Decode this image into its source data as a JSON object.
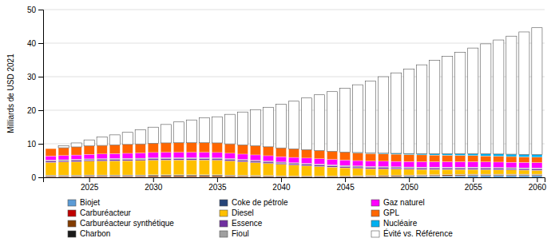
{
  "chart_data": {
    "type": "bar",
    "stacked": true,
    "ylabel": "Milliards de USD 2021",
    "x": [
      2022,
      2023,
      2024,
      2025,
      2026,
      2027,
      2028,
      2029,
      2030,
      2031,
      2032,
      2033,
      2034,
      2035,
      2036,
      2037,
      2038,
      2039,
      2040,
      2041,
      2042,
      2043,
      2044,
      2045,
      2046,
      2047,
      2048,
      2049,
      2050,
      2051,
      2052,
      2053,
      2054,
      2055,
      2056,
      2057,
      2058,
      2059,
      2060
    ],
    "xlim": [
      2021.4,
      2060.6
    ],
    "xticks": [
      2025,
      2030,
      2035,
      2040,
      2045,
      2050,
      2055,
      2060
    ],
    "ylim": [
      0,
      50
    ],
    "yticks": [
      0,
      10,
      20,
      30,
      40,
      50
    ],
    "grid": true,
    "legend": "bottom",
    "series": [
      {
        "name": "Biojet",
        "color": "#5B9BD5",
        "values": [
          0.0,
          0.0,
          0.0,
          0.0,
          0.0,
          0.0,
          0.0,
          0.0,
          0.0,
          0.0,
          0.0,
          0.0,
          0.0,
          0.0,
          0.0,
          0.0,
          0.0,
          0.0,
          0.0,
          0.0,
          0.0,
          0.0,
          0.0,
          0.0,
          0.05,
          0.1,
          0.15,
          0.2,
          0.25,
          0.3,
          0.35,
          0.4,
          0.45,
          0.5,
          0.5,
          0.5,
          0.5,
          0.5,
          0.5
        ]
      },
      {
        "name": "Carburéacteur",
        "color": "#C00000",
        "values": [
          0.15,
          0.15,
          0.15,
          0.15,
          0.15,
          0.15,
          0.15,
          0.15,
          0.15,
          0.15,
          0.15,
          0.15,
          0.15,
          0.15,
          0.12,
          0.1,
          0.08,
          0.06,
          0.05,
          0.04,
          0.04,
          0.04,
          0.04,
          0.04,
          0.04,
          0.04,
          0.04,
          0.04,
          0.04,
          0.04,
          0.04,
          0.04,
          0.04,
          0.04,
          0.04,
          0.04,
          0.04,
          0.04,
          0.04
        ]
      },
      {
        "name": "Carburéacteur synthétique",
        "color": "#833C00",
        "values": [
          0.25,
          0.25,
          0.25,
          0.3,
          0.3,
          0.3,
          0.3,
          0.3,
          0.35,
          0.35,
          0.35,
          0.35,
          0.35,
          0.35,
          0.35,
          0.35,
          0.35,
          0.35,
          0.3,
          0.3,
          0.3,
          0.3,
          0.3,
          0.3,
          0.3,
          0.3,
          0.3,
          0.3,
          0.3,
          0.3,
          0.3,
          0.3,
          0.3,
          0.3,
          0.3,
          0.3,
          0.3,
          0.3,
          0.3
        ]
      },
      {
        "name": "Charbon",
        "color": "#1a1a1a",
        "values": [
          0.2,
          0.2,
          0.2,
          0.2,
          0.2,
          0.2,
          0.2,
          0.2,
          0.2,
          0.2,
          0.2,
          0.2,
          0.2,
          0.2,
          0.15,
          0.12,
          0.1,
          0.08,
          0.06,
          0.05,
          0.05,
          0.05,
          0.05,
          0.05,
          0.05,
          0.05,
          0.05,
          0.05,
          0.05,
          0.05,
          0.05,
          0.05,
          0.05,
          0.05,
          0.05,
          0.05,
          0.05,
          0.05,
          0.05
        ]
      },
      {
        "name": "Coke de pétrole",
        "color": "#264478",
        "values": [
          0.05,
          0.05,
          0.05,
          0.05,
          0.05,
          0.05,
          0.05,
          0.05,
          0.05,
          0.05,
          0.05,
          0.05,
          0.05,
          0.05,
          0.05,
          0.05,
          0.05,
          0.05,
          0.05,
          0.05,
          0.05,
          0.05,
          0.05,
          0.05,
          0.05,
          0.05,
          0.05,
          0.05,
          0.05,
          0.05,
          0.05,
          0.05,
          0.05,
          0.05,
          0.05,
          0.05,
          0.05,
          0.05,
          0.05
        ]
      },
      {
        "name": "Diesel",
        "color": "#FFC000",
        "values": [
          3.8,
          3.9,
          4.0,
          4.1,
          4.15,
          4.2,
          4.25,
          4.3,
          4.35,
          4.4,
          4.4,
          4.4,
          4.4,
          4.35,
          4.2,
          4.0,
          3.8,
          3.6,
          3.4,
          3.2,
          3.0,
          2.8,
          2.6,
          2.4,
          2.2,
          2.0,
          1.9,
          1.8,
          1.7,
          1.6,
          1.55,
          1.5,
          1.45,
          1.4,
          1.35,
          1.3,
          1.25,
          1.2,
          1.15
        ]
      },
      {
        "name": "Essence",
        "color": "#7030A0",
        "values": [
          0.4,
          0.4,
          0.4,
          0.4,
          0.4,
          0.4,
          0.4,
          0.4,
          0.4,
          0.4,
          0.4,
          0.4,
          0.4,
          0.4,
          0.4,
          0.4,
          0.4,
          0.4,
          0.4,
          0.4,
          0.4,
          0.4,
          0.4,
          0.4,
          0.4,
          0.4,
          0.4,
          0.4,
          0.4,
          0.4,
          0.4,
          0.4,
          0.4,
          0.4,
          0.4,
          0.4,
          0.4,
          0.4,
          0.4
        ]
      },
      {
        "name": "Fioul",
        "color": "#A0A0A0",
        "values": [
          0.3,
          0.3,
          0.3,
          0.3,
          0.3,
          0.3,
          0.3,
          0.3,
          0.3,
          0.3,
          0.3,
          0.3,
          0.3,
          0.3,
          0.3,
          0.3,
          0.3,
          0.3,
          0.3,
          0.3,
          0.3,
          0.3,
          0.3,
          0.3,
          0.3,
          0.3,
          0.3,
          0.3,
          0.3,
          0.3,
          0.3,
          0.3,
          0.3,
          0.3,
          0.3,
          0.3,
          0.3,
          0.3,
          0.3
        ]
      },
      {
        "name": "Gaz naturel",
        "color": "#FF00FF",
        "values": [
          1.2,
          1.25,
          1.3,
          1.35,
          1.4,
          1.45,
          1.5,
          1.55,
          1.6,
          1.6,
          1.6,
          1.6,
          1.6,
          1.6,
          1.6,
          1.6,
          1.6,
          1.6,
          1.6,
          1.6,
          1.6,
          1.6,
          1.6,
          1.6,
          1.6,
          1.6,
          1.6,
          1.6,
          1.6,
          1.6,
          1.6,
          1.6,
          1.6,
          1.6,
          1.6,
          1.6,
          1.6,
          1.6,
          1.6
        ]
      },
      {
        "name": "GPL",
        "color": "#FF6600",
        "values": [
          2.2,
          2.3,
          2.4,
          2.5,
          2.55,
          2.6,
          2.65,
          2.7,
          2.75,
          2.8,
          2.85,
          2.85,
          2.85,
          2.85,
          2.8,
          2.75,
          2.7,
          2.65,
          2.6,
          2.55,
          2.5,
          2.45,
          2.4,
          2.35,
          2.3,
          2.25,
          2.2,
          2.15,
          2.1,
          2.05,
          2.0,
          1.95,
          1.9,
          1.85,
          1.8,
          1.75,
          1.7,
          1.65,
          1.6
        ]
      },
      {
        "name": "Nucléaire",
        "color": "#00B0F0",
        "values": [
          0.0,
          0.0,
          0.0,
          0.0,
          0.0,
          0.0,
          0.0,
          0.0,
          0.0,
          0.0,
          0.0,
          0.0,
          0.0,
          0.0,
          0.0,
          0.0,
          0.0,
          0.0,
          0.0,
          0.0,
          0.0,
          0.0,
          0.0,
          0.05,
          0.1,
          0.15,
          0.2,
          0.25,
          0.3,
          0.35,
          0.4,
          0.45,
          0.5,
          0.55,
          0.6,
          0.65,
          0.7,
          0.75,
          0.8
        ]
      },
      {
        "name": "Évité vs. Référence",
        "color": "#FFFFFF",
        "values": [
          0.0,
          0.6,
          1.2,
          1.8,
          2.5,
          3.0,
          3.6,
          4.2,
          4.8,
          5.5,
          6.2,
          6.8,
          7.4,
          7.8,
          8.8,
          9.8,
          10.8,
          11.8,
          13.0,
          14.2,
          15.4,
          16.6,
          17.8,
          19.0,
          20.2,
          21.5,
          22.8,
          24.0,
          25.2,
          26.5,
          27.8,
          29.0,
          30.2,
          31.5,
          32.8,
          34.0,
          35.2,
          36.5,
          37.8
        ]
      }
    ]
  }
}
